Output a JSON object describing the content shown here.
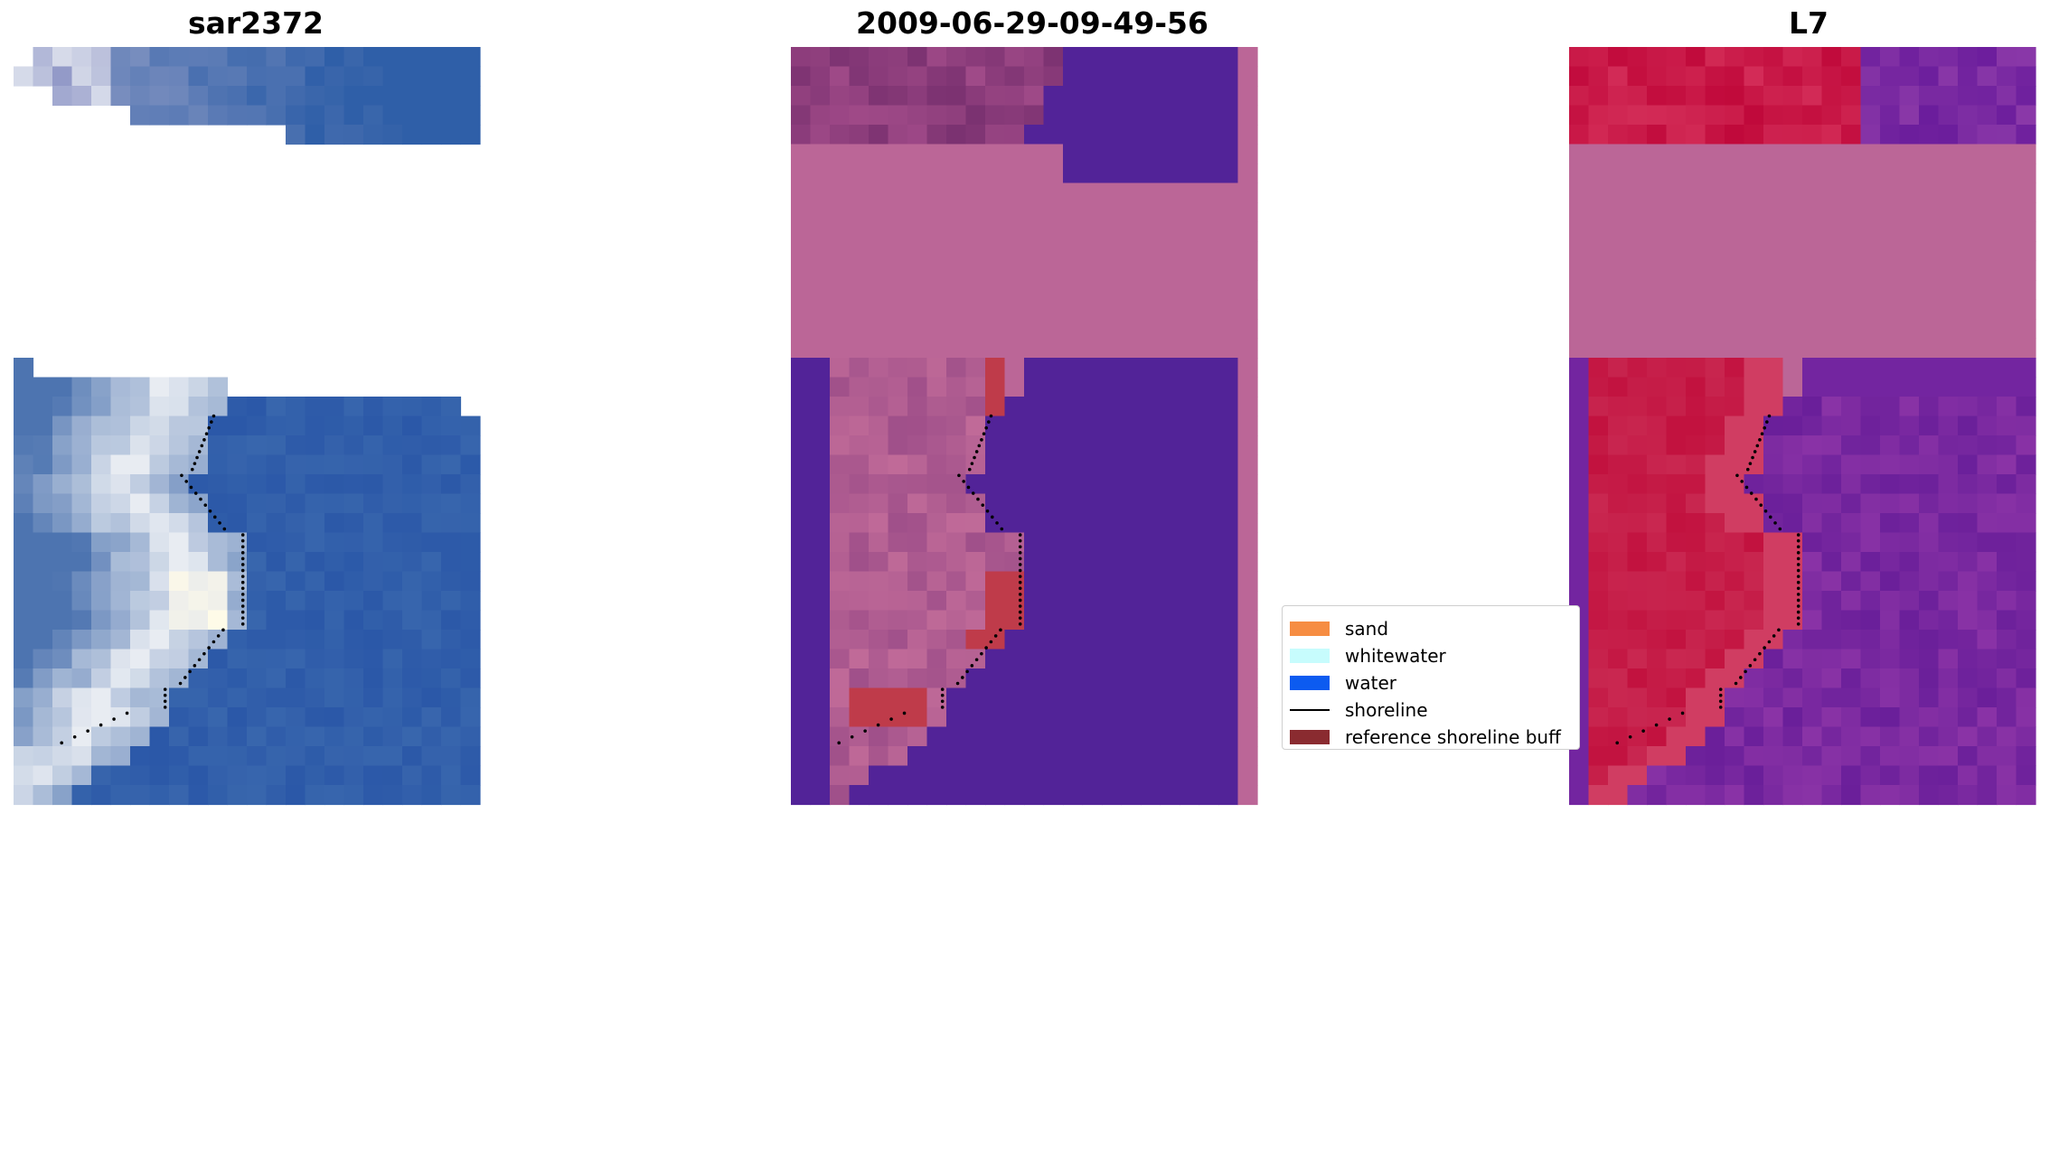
{
  "panels": [
    {
      "title": "sar2372"
    },
    {
      "title": "2009-06-29-09-49-56"
    },
    {
      "title": "L7"
    }
  ],
  "legend": {
    "items": [
      {
        "label": "sand",
        "color": "#f68d43",
        "kind": "patch"
      },
      {
        "label": "whitewater",
        "color": "#c7fcfd",
        "kind": "patch"
      },
      {
        "label": "water",
        "color": "#0c5bf0",
        "kind": "patch"
      },
      {
        "label": "shoreline",
        "color": "#000000",
        "kind": "line"
      },
      {
        "label": "reference shoreline buff",
        "color": "#8a2b30",
        "kind": "patch"
      }
    ]
  },
  "colors": {
    "rgb_water": "#2f5fa8",
    "classified_buffer_overlay": "#bb6697",
    "classified_water": "#522398",
    "classified_sand": "#bf3b4a",
    "ndwi_land": "#c3133f",
    "ndwi_water": "#7325a0",
    "shoreline_points": "#000000"
  }
}
